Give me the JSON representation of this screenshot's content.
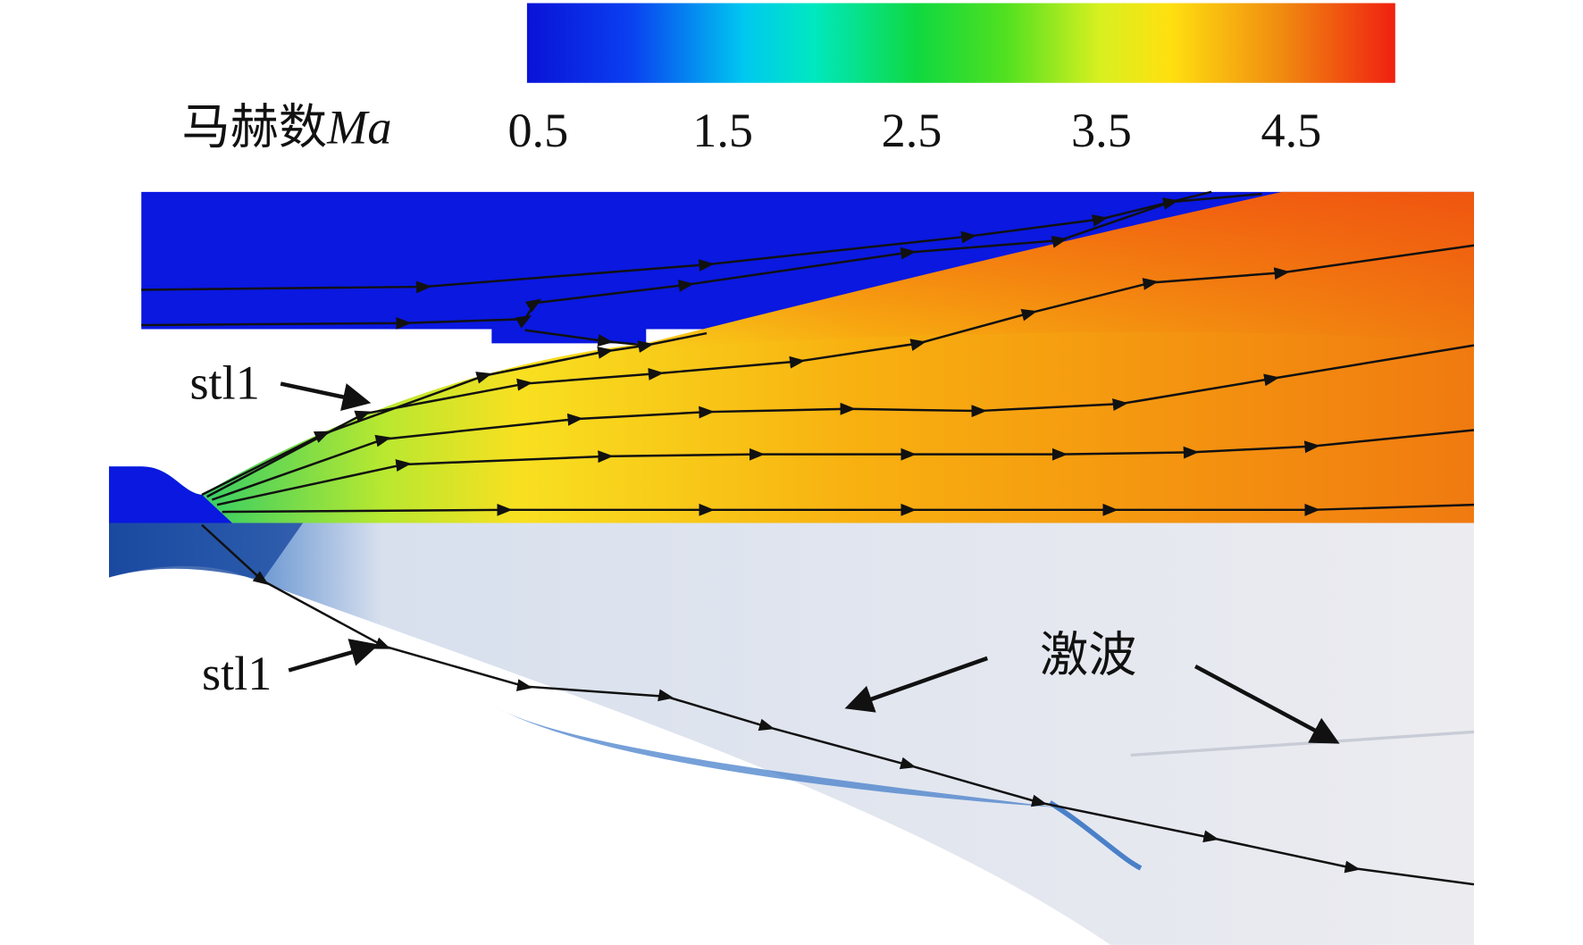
{
  "colorbar": {
    "label": "马赫数",
    "label_symbol": "Ma",
    "ticks": [
      "0.5",
      "1.5",
      "2.5",
      "3.5",
      "4.5"
    ]
  },
  "annotations": {
    "upper_streamline": "stl1",
    "lower_streamline": "stl1",
    "shock": "激波"
  }
}
